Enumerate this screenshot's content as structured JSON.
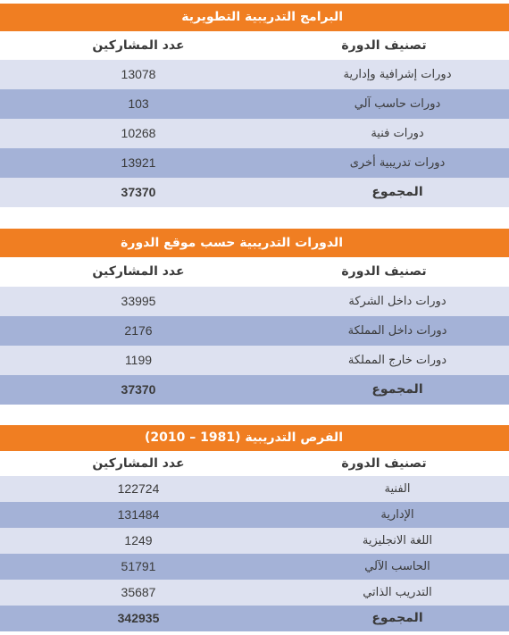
{
  "tables": [
    {
      "title": "البرامج التدريبية التطويرية",
      "header": {
        "category": "تصنيف الدورة",
        "count": "عدد المشاركين"
      },
      "rows": [
        {
          "category": "دورات إشرافية وإدارية",
          "count": "13078"
        },
        {
          "category": "دورات حاسب آلي",
          "count": "103"
        },
        {
          "category": "دورات فنية",
          "count": "10268"
        },
        {
          "category": "دورات تدريبية أخرى",
          "count": "13921"
        }
      ],
      "total": {
        "label": "المجموع",
        "count": "37370"
      }
    },
    {
      "title": "الدورات التدريبية حسب موقع الدورة",
      "header": {
        "category": "تصنيف الدورة",
        "count": "عدد المشاركين"
      },
      "rows": [
        {
          "category": "دورات داخل الشركة",
          "count": "33995"
        },
        {
          "category": "دورات داخل المملكة",
          "count": "2176"
        },
        {
          "category": "دورات خارج المملكة",
          "count": "1199"
        }
      ],
      "total": {
        "label": "المجموع",
        "count": "37370"
      }
    },
    {
      "title": "الفرص التدريبية (1981 – 2010)",
      "header": {
        "category": "تصنيف الدورة",
        "count": "عدد المشاركين"
      },
      "rows": [
        {
          "category": "الفنية",
          "count": "122724"
        },
        {
          "category": "الإدارية",
          "count": "131484"
        },
        {
          "category": "اللغة الانجليزية",
          "count": "1249"
        },
        {
          "category": "الحاسب الآلي",
          "count": "51791"
        },
        {
          "category": "التدريب الذاتي",
          "count": "35687"
        }
      ],
      "total": {
        "label": "المجموع",
        "count": "342935"
      }
    }
  ]
}
